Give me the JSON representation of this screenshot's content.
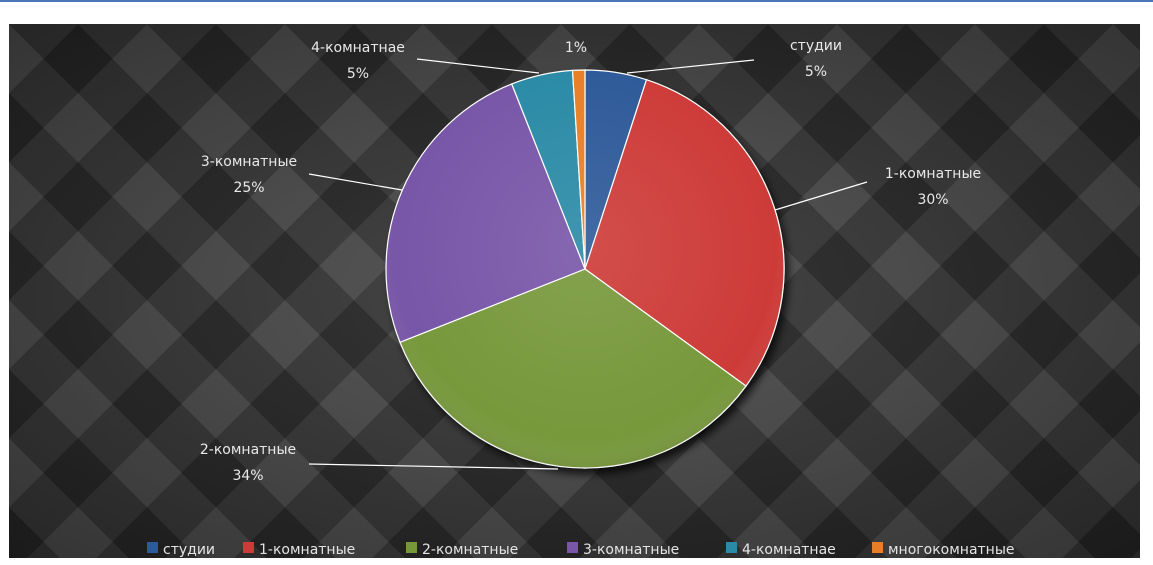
{
  "chart_data": {
    "type": "pie",
    "title": "",
    "categories": [
      "студии",
      "1-комнатные",
      "2-комнатные",
      "3-комнатные",
      "4-комнатнае",
      "многокомнатные"
    ],
    "values": [
      5,
      30,
      34,
      25,
      5,
      1
    ],
    "value_labels": [
      "5%",
      "30%",
      "34%",
      "25%",
      "5%",
      "1%"
    ],
    "colors": [
      "#2e5a99",
      "#cd3b38",
      "#77983a",
      "#7857a8",
      "#2b8aa6",
      "#e87f26"
    ],
    "legend_position": "bottom",
    "data_label_style": "category and percent with leader lines",
    "background": "dark quilted texture"
  }
}
